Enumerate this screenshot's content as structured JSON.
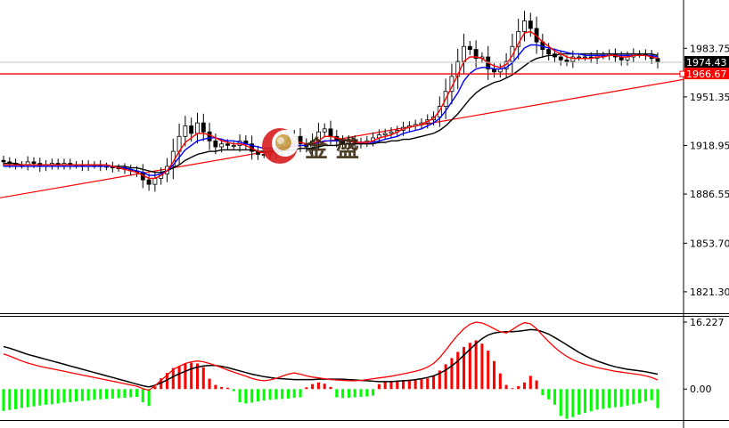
{
  "chart_data": [
    {
      "type": "candlestick",
      "y_ticks": [
        "1983.75",
        "1951.35",
        "1918.95",
        "1886.55",
        "1853.70",
        "1821.30"
      ],
      "y_tick_values": [
        1983.75,
        1951.35,
        1918.95,
        1886.55,
        1853.7,
        1821.3
      ],
      "ylim": [
        1807,
        2016
      ],
      "current_price": {
        "label": "1974.43",
        "value": 1974.43,
        "color": "#000000"
      },
      "level_line": {
        "label": "1966.67",
        "value": 1966.67,
        "color": "#ff0000"
      },
      "trendline": {
        "from": [
          0,
          1884
        ],
        "to": [
          1,
          1963
        ],
        "color": "#ff0000"
      },
      "closes": [
        1908,
        1907,
        1906,
        1906,
        1908,
        1907,
        1905,
        1906,
        1907,
        1906,
        1907,
        1906,
        1906,
        1905,
        1906,
        1906,
        1905,
        1905,
        1904,
        1904,
        1903,
        1902,
        1901,
        1896,
        1893,
        1897,
        1900,
        1905,
        1915,
        1925,
        1932,
        1927,
        1934,
        1928,
        1922,
        1918,
        1920,
        1919,
        1919,
        1922,
        1920,
        1915,
        1913,
        1913,
        1914,
        1916,
        1918,
        1922,
        1925,
        1920,
        1918,
        1922,
        1928,
        1930,
        1925,
        1922,
        1920,
        1922,
        1920,
        1921,
        1922,
        1924,
        1926,
        1927,
        1928,
        1929,
        1931,
        1932,
        1933,
        1934,
        1936,
        1938,
        1945,
        1955,
        1965,
        1975,
        1985,
        1983,
        1977,
        1978,
        1970,
        1968,
        1970,
        1975,
        1985,
        1995,
        2002,
        1997,
        1988,
        1983,
        1980,
        1978,
        1976,
        1975,
        1978,
        1978,
        1978,
        1977,
        1979,
        1979,
        1980,
        1978,
        1976,
        1978,
        1980,
        1980,
        1979,
        1977,
        1974.43
      ],
      "ma_red": [
        1906,
        1906,
        1906,
        1906,
        1906,
        1906,
        1906,
        1906,
        1906,
        1906,
        1906,
        1906,
        1906,
        1906,
        1906,
        1906,
        1906,
        1906,
        1905,
        1904,
        1903,
        1902,
        1901,
        1899,
        1897,
        1897,
        1899,
        1902,
        1908,
        1915,
        1921,
        1924,
        1927,
        1927,
        1926,
        1924,
        1922,
        1921,
        1920,
        1920,
        1919,
        1917,
        1915,
        1914,
        1914,
        1915,
        1917,
        1919,
        1921,
        1921,
        1920,
        1920,
        1922,
        1925,
        1925,
        1924,
        1923,
        1922,
        1921,
        1921,
        1921,
        1922,
        1924,
        1925,
        1926,
        1928,
        1930,
        1931,
        1932,
        1933,
        1935,
        1937,
        1942,
        1950,
        1958,
        1966,
        1975,
        1978,
        1978,
        1977,
        1974,
        1972,
        1971,
        1973,
        1979,
        1987,
        1994,
        1995,
        1992,
        1988,
        1985,
        1982,
        1980,
        1978,
        1977,
        1977,
        1977,
        1977,
        1978,
        1978,
        1979,
        1979,
        1978,
        1978,
        1979,
        1979,
        1979,
        1978,
        1977
      ],
      "ma_blue": [
        1905,
        1905,
        1905,
        1905,
        1905,
        1905,
        1905,
        1905,
        1905,
        1905,
        1905,
        1905,
        1905,
        1905,
        1905,
        1905,
        1905,
        1905,
        1905,
        1904,
        1904,
        1903,
        1902,
        1901,
        1899,
        1899,
        1900,
        1902,
        1906,
        1911,
        1916,
        1919,
        1922,
        1923,
        1924,
        1924,
        1923,
        1922,
        1922,
        1921,
        1920,
        1919,
        1918,
        1917,
        1917,
        1917,
        1917,
        1918,
        1919,
        1919,
        1919,
        1920,
        1921,
        1922,
        1922,
        1922,
        1922,
        1922,
        1921,
        1921,
        1921,
        1921,
        1922,
        1923,
        1924,
        1925,
        1927,
        1928,
        1929,
        1930,
        1932,
        1934,
        1937,
        1942,
        1948,
        1954,
        1962,
        1967,
        1970,
        1971,
        1971,
        1970,
        1970,
        1971,
        1974,
        1979,
        1984,
        1986,
        1986,
        1985,
        1984,
        1983,
        1982,
        1981,
        1980,
        1980,
        1979,
        1979,
        1979,
        1979,
        1979,
        1979,
        1979,
        1979,
        1979,
        1979,
        1979,
        1979,
        1978
      ],
      "ma_black": [
        1907,
        1907,
        1907,
        1906,
        1906,
        1906,
        1906,
        1906,
        1906,
        1906,
        1906,
        1906,
        1906,
        1906,
        1906,
        1906,
        1906,
        1906,
        1905,
        1905,
        1905,
        1904,
        1904,
        1903,
        1902,
        1901,
        1901,
        1902,
        1904,
        1906,
        1909,
        1911,
        1913,
        1914,
        1915,
        1915,
        1916,
        1916,
        1916,
        1916,
        1916,
        1916,
        1915,
        1915,
        1915,
        1915,
        1915,
        1916,
        1916,
        1917,
        1917,
        1917,
        1918,
        1919,
        1919,
        1919,
        1920,
        1920,
        1920,
        1920,
        1920,
        1920,
        1921,
        1921,
        1922,
        1922,
        1923,
        1923,
        1924,
        1925,
        1926,
        1927,
        1929,
        1932,
        1936,
        1940,
        1945,
        1950,
        1954,
        1957,
        1959,
        1961,
        1962,
        1964,
        1966,
        1969,
        1972,
        1975,
        1977,
        1978,
        1979,
        1979,
        1980,
        1980,
        1980,
        1980,
        1980,
        1980,
        1980,
        1980,
        1980,
        1980,
        1980,
        1980,
        1980,
        1980,
        1980,
        1980,
        1979
      ]
    },
    {
      "type": "macd",
      "y_ticks": [
        "16.227",
        "0.00"
      ],
      "y_tick_values": [
        16.227,
        0.0
      ],
      "ylim": [
        -7.5,
        17.3
      ],
      "histogram_up_color": "#ff0000",
      "histogram_down_color": "#00ff00",
      "signal_color": "#000000",
      "macd_line_color": "#ff0000",
      "signal_line": [
        10.3,
        9.9,
        9.4,
        8.9,
        8.4,
        8.0,
        7.6,
        7.2,
        6.8,
        6.4,
        6.0,
        5.6,
        5.2,
        4.8,
        4.4,
        4.0,
        3.6,
        3.2,
        2.8,
        2.4,
        2.0,
        1.6,
        1.2,
        0.8,
        0.5,
        0.9,
        1.5,
        2.2,
        3.0,
        3.7,
        4.3,
        4.9,
        5.3,
        5.6,
        5.7,
        5.7,
        5.5,
        5.2,
        4.8,
        4.4,
        4.0,
        3.6,
        3.3,
        3.0,
        2.8,
        2.6,
        2.5,
        2.4,
        2.3,
        2.3,
        2.3,
        2.3,
        2.4,
        2.4,
        2.4,
        2.4,
        2.4,
        2.3,
        2.2,
        2.1,
        2.0,
        1.9,
        1.8,
        1.8,
        1.8,
        1.9,
        2.0,
        2.1,
        2.3,
        2.5,
        2.8,
        3.2,
        3.8,
        4.6,
        5.6,
        6.8,
        8.2,
        9.6,
        11.0,
        12.2,
        13.1,
        13.6,
        13.8,
        13.9,
        13.9,
        14.0,
        14.2,
        14.4,
        14.3,
        13.9,
        13.3,
        12.5,
        11.6,
        10.7,
        9.8,
        8.9,
        8.1,
        7.4,
        6.8,
        6.3,
        5.8,
        5.4,
        5.1,
        4.8,
        4.6,
        4.4,
        4.2,
        3.9,
        3.6
      ],
      "macd_line": [
        8.5,
        8.0,
        7.4,
        6.8,
        6.3,
        5.9,
        5.5,
        5.2,
        4.9,
        4.6,
        4.3,
        4.0,
        3.7,
        3.4,
        3.1,
        2.8,
        2.5,
        2.2,
        1.9,
        1.6,
        1.3,
        1.0,
        0.7,
        0.1,
        -0.3,
        0.8,
        2.1,
        3.4,
        4.7,
        5.5,
        6.2,
        6.6,
        6.8,
        6.6,
        6.2,
        5.7,
        5.2,
        4.6,
        4.1,
        3.6,
        3.1,
        2.6,
        2.2,
        2.0,
        2.2,
        2.6,
        3.1,
        3.6,
        3.9,
        3.6,
        3.2,
        2.9,
        2.7,
        2.5,
        2.3,
        2.2,
        2.1,
        2.0,
        2.0,
        2.1,
        2.3,
        2.5,
        2.7,
        2.9,
        3.1,
        3.4,
        3.7,
        4.0,
        4.3,
        4.7,
        5.3,
        6.2,
        7.6,
        9.4,
        11.3,
        13.1,
        14.6,
        15.7,
        16.2,
        16.0,
        15.4,
        14.6,
        13.9,
        13.6,
        14.4,
        15.4,
        16.1,
        15.8,
        14.6,
        13.0,
        11.5,
        10.1,
        8.9,
        7.9,
        7.1,
        6.5,
        6.0,
        5.6,
        5.2,
        4.9,
        4.6,
        4.3,
        4.1,
        3.9,
        3.7,
        3.5,
        3.2,
        2.8,
        2.2
      ],
      "histogram": [
        -5.3,
        -5.1,
        -4.9,
        -4.6,
        -4.4,
        -4.2,
        -4.0,
        -3.8,
        -3.7,
        -3.5,
        -3.3,
        -3.2,
        -3.0,
        -2.9,
        -2.8,
        -2.6,
        -2.5,
        -2.4,
        -2.3,
        -2.2,
        -2.1,
        -2.0,
        -1.9,
        -3.2,
        -4.1,
        0.6,
        2.6,
        3.9,
        5.1,
        5.6,
        6.1,
        6.4,
        6.2,
        5.3,
        2.5,
        1.0,
        0.5,
        0.3,
        -0.5,
        -3.2,
        -3.5,
        -3.3,
        -3.0,
        -2.8,
        -2.6,
        -2.5,
        -2.4,
        -2.3,
        -2.1,
        -2.0,
        0.4,
        1.2,
        1.6,
        1.3,
        0.5,
        -2.0,
        -2.2,
        -2.1,
        -2.0,
        -1.9,
        -1.8,
        -1.6,
        1.2,
        1.8,
        2.0,
        2.1,
        2.2,
        2.3,
        2.2,
        2.4,
        2.6,
        3.2,
        4.5,
        6.0,
        7.5,
        9.0,
        10.2,
        11.2,
        11.8,
        11.0,
        9.3,
        6.8,
        3.8,
        1.0,
        0.2,
        0.7,
        1.6,
        3.2,
        2.1,
        -1.5,
        -2.5,
        -3.8,
        -6.5,
        -7.2,
        -6.8,
        -6.2,
        -5.8,
        -5.4,
        -5.0,
        -4.8,
        -4.6,
        -4.4,
        -4.3,
        -4.0,
        -3.7,
        -3.4,
        -3.0,
        -2.7,
        -4.6
      ]
    }
  ],
  "watermark": {
    "text": "金 盛",
    "icon": "jinsheng-logo-icon"
  },
  "colors": {
    "background": "#ffffff",
    "bull_candle": "#ffffff",
    "bear_candle": "#000000",
    "candle_outline": "#000000",
    "ma_red": "#ff0000",
    "ma_blue": "#0000ff",
    "ma_black": "#000000",
    "gridline_price": "#c0c0c0"
  }
}
